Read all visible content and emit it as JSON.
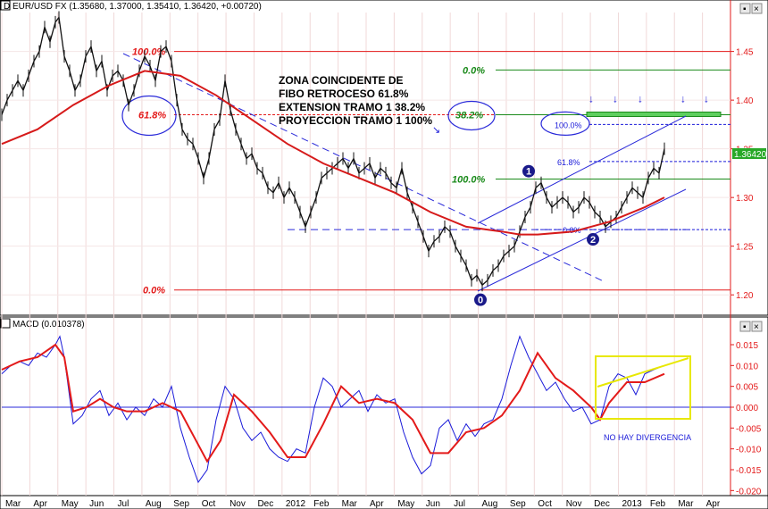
{
  "header": {
    "price_title": "D EUR/USD FX (1.35680, 1.37000, 1.35410, 1.36420, +0.00720)",
    "macd_title": "MACD (0.010378)",
    "last_price_label": "1.36420"
  },
  "chart_data": [
    {
      "type": "candlestick",
      "title": "D EUR/USD FX (1.35680, 1.37000, 1.35410, 1.36420, +0.00720)",
      "quote": {
        "open": 1.3568,
        "high": 1.37,
        "low": 1.3541,
        "close": 1.3642,
        "change": 0.0072
      },
      "x_tick_labels": [
        "Mar",
        "Apr",
        "May",
        "Jun",
        "Jul",
        "Aug",
        "Sep",
        "Oct",
        "Nov",
        "Dec",
        "2012",
        "Feb",
        "Mar",
        "Apr",
        "May",
        "Jun",
        "Jul",
        "Aug",
        "Sep",
        "Oct",
        "Nov",
        "Dec",
        "2013",
        "Feb",
        "Mar",
        "Apr"
      ],
      "y_tick_labels": [
        "1.45",
        "1.40",
        "1.35",
        "1.30",
        "1.25",
        "1.20"
      ],
      "ylim": [
        1.18,
        1.49
      ],
      "price_path": {
        "x": [
          0,
          6,
          12,
          18,
          24,
          30,
          36,
          42,
          48,
          54,
          60,
          64,
          70,
          76,
          82,
          88,
          94,
          100,
          106,
          112,
          118,
          124,
          130,
          136,
          142,
          148,
          154,
          160,
          166,
          172,
          178,
          184,
          190,
          196,
          202,
          208,
          214,
          220,
          226,
          232,
          238,
          244,
          250,
          256,
          262,
          268,
          274,
          280,
          286,
          292,
          298,
          304,
          310,
          316,
          322,
          328,
          334,
          340,
          346,
          352,
          358,
          364,
          370,
          376,
          382,
          388,
          394,
          400,
          406,
          412,
          418,
          424,
          430,
          436,
          442,
          448,
          454,
          460,
          466,
          472,
          478,
          484,
          490,
          496,
          502,
          508,
          514,
          520,
          526,
          532,
          538,
          544,
          550,
          556,
          562,
          568,
          574,
          580,
          586,
          592,
          598,
          604,
          610,
          616,
          622,
          628,
          634,
          640,
          646,
          652,
          658,
          664,
          670,
          676,
          682,
          688,
          694,
          700,
          706,
          712,
          718,
          724,
          730,
          736,
          742
        ],
        "y": [
          1.385,
          1.4,
          1.41,
          1.42,
          1.41,
          1.425,
          1.44,
          1.45,
          1.475,
          1.46,
          1.48,
          1.485,
          1.445,
          1.43,
          1.41,
          1.42,
          1.445,
          1.455,
          1.43,
          1.44,
          1.41,
          1.425,
          1.43,
          1.42,
          1.395,
          1.41,
          1.43,
          1.445,
          1.435,
          1.42,
          1.45,
          1.455,
          1.44,
          1.4,
          1.37,
          1.36,
          1.355,
          1.34,
          1.32,
          1.34,
          1.37,
          1.38,
          1.42,
          1.39,
          1.37,
          1.355,
          1.34,
          1.345,
          1.33,
          1.325,
          1.31,
          1.305,
          1.315,
          1.3,
          1.31,
          1.3,
          1.285,
          1.27,
          1.285,
          1.3,
          1.32,
          1.325,
          1.33,
          1.335,
          1.34,
          1.33,
          1.34,
          1.325,
          1.33,
          1.335,
          1.32,
          1.33,
          1.325,
          1.315,
          1.31,
          1.33,
          1.305,
          1.29,
          1.275,
          1.26,
          1.245,
          1.255,
          1.26,
          1.27,
          1.265,
          1.25,
          1.24,
          1.23,
          1.215,
          1.22,
          1.21,
          1.215,
          1.225,
          1.23,
          1.24,
          1.245,
          1.25,
          1.265,
          1.28,
          1.29,
          1.31,
          1.315,
          1.3,
          1.29,
          1.295,
          1.3,
          1.295,
          1.285,
          1.29,
          1.3,
          1.295,
          1.285,
          1.28,
          1.27,
          1.275,
          1.28,
          1.29,
          1.3,
          1.31,
          1.305,
          1.3,
          1.32,
          1.33,
          1.325,
          1.35
        ]
      },
      "ema_path": {
        "x": [
          0,
          40,
          80,
          120,
          160,
          200,
          240,
          280,
          320,
          360,
          400,
          440,
          480,
          520,
          560,
          580,
          600,
          640,
          680,
          720,
          742
        ],
        "y": [
          1.355,
          1.37,
          1.395,
          1.415,
          1.43,
          1.425,
          1.405,
          1.38,
          1.355,
          1.335,
          1.32,
          1.305,
          1.285,
          1.27,
          1.265,
          1.262,
          1.262,
          1.265,
          1.275,
          1.29,
          1.3
        ]
      },
      "fibonacci_levels": [
        {
          "label": "100.0%",
          "value": 1.45,
          "color": "#e31a1a"
        },
        {
          "label": "61.8%",
          "value": 1.385,
          "color": "#e31a1a"
        },
        {
          "label": "0.0%",
          "value": 1.205,
          "color": "#e31a1a"
        },
        {
          "label": "0.0%",
          "value": 1.431,
          "color": "#1a8a1a"
        },
        {
          "label": "38.2%",
          "value": 1.385,
          "color": "#1a8a1a"
        },
        {
          "label": "100.0%",
          "value": 1.319,
          "color": "#1a8a1a"
        },
        {
          "label": "61.8%",
          "value": 1.337,
          "color": "#1a1ad9"
        },
        {
          "label": "0.0%",
          "value": 1.267,
          "color": "#1a1ad9"
        },
        {
          "label": "100.0%",
          "value": 1.375,
          "color": "#1a1ad9"
        }
      ],
      "annotation": [
        "ZONA COINCIDENTE DE",
        "FIBO RETROCESO 61.8%",
        "EXTENSION TRAMO 1 38.2%",
        "PROYECCION TRAMO 1 100%"
      ],
      "wave_labels": [
        "0",
        "1",
        "2"
      ]
    },
    {
      "type": "line",
      "title": "MACD (0.010378)",
      "y_tick_labels": [
        "0.015",
        "0.010",
        "0.005",
        "0.000",
        "-0.005",
        "-0.010",
        "-0.015",
        "-0.020"
      ],
      "ylim": [
        -0.021,
        0.018
      ],
      "series": [
        {
          "color": "#1a1ad9",
          "x": [
            0,
            10,
            20,
            30,
            40,
            50,
            60,
            65,
            70,
            80,
            90,
            100,
            110,
            120,
            130,
            140,
            150,
            160,
            170,
            180,
            190,
            200,
            210,
            220,
            230,
            240,
            250,
            260,
            270,
            280,
            290,
            300,
            310,
            320,
            330,
            340,
            350,
            360,
            370,
            380,
            390,
            400,
            410,
            420,
            430,
            440,
            450,
            460,
            470,
            480,
            490,
            500,
            510,
            520,
            530,
            540,
            550,
            560,
            570,
            580,
            590,
            600,
            610,
            620,
            630,
            640,
            650,
            660,
            670,
            680,
            690,
            700,
            710,
            720,
            730,
            742
          ],
          "y": [
            0.008,
            0.01,
            0.011,
            0.01,
            0.013,
            0.012,
            0.015,
            0.017,
            0.012,
            -0.004,
            -0.002,
            0.002,
            0.004,
            -0.002,
            0.001,
            -0.003,
            0.0,
            -0.002,
            0.002,
            0.0,
            0.005,
            -0.005,
            -0.012,
            -0.018,
            -0.015,
            -0.003,
            0.005,
            0.002,
            -0.005,
            -0.008,
            -0.006,
            -0.01,
            -0.012,
            -0.013,
            -0.01,
            -0.011,
            0.0,
            0.007,
            0.005,
            0.0,
            0.002,
            0.004,
            -0.001,
            0.003,
            0.001,
            0.002,
            -0.006,
            -0.012,
            -0.016,
            -0.014,
            -0.005,
            -0.003,
            -0.008,
            -0.004,
            -0.007,
            -0.004,
            -0.003,
            0.002,
            0.01,
            0.017,
            0.012,
            0.008,
            0.004,
            0.006,
            0.002,
            -0.001,
            0.0,
            -0.004,
            -0.003,
            0.005,
            0.008,
            0.007,
            0.003,
            0.008,
            0.009,
            0.01
          ]
        },
        {
          "color": "#e31a1a",
          "x": [
            0,
            20,
            40,
            60,
            70,
            80,
            95,
            110,
            125,
            140,
            160,
            180,
            200,
            215,
            230,
            245,
            260,
            280,
            300,
            320,
            340,
            360,
            380,
            400,
            420,
            440,
            460,
            480,
            500,
            520,
            540,
            560,
            580,
            600,
            620,
            640,
            660,
            670,
            680,
            700,
            720,
            742
          ],
          "y": [
            0.009,
            0.011,
            0.012,
            0.015,
            0.012,
            -0.001,
            0.0,
            0.002,
            0.0,
            -0.001,
            -0.001,
            0.001,
            -0.001,
            -0.007,
            -0.013,
            -0.008,
            0.003,
            -0.001,
            -0.006,
            -0.012,
            -0.012,
            -0.004,
            0.005,
            0.001,
            0.002,
            0.001,
            -0.003,
            -0.011,
            -0.011,
            -0.006,
            -0.005,
            -0.002,
            0.004,
            0.013,
            0.007,
            0.004,
            0.0,
            -0.003,
            0.001,
            0.006,
            0.006,
            0.008
          ]
        }
      ],
      "zero_line": 0.0,
      "annotation": "NO HAY DIVERGENCIA"
    }
  ]
}
